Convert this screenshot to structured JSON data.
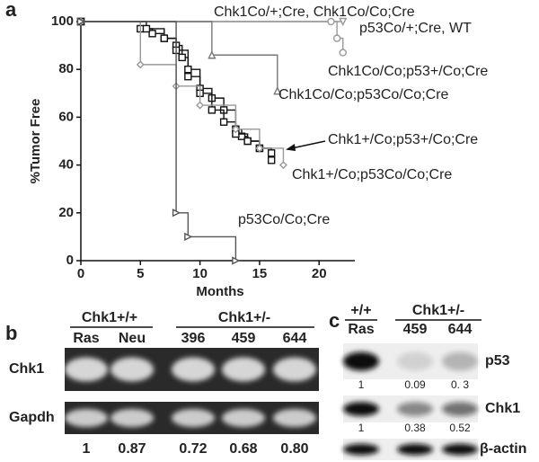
{
  "chart_data": {
    "type": "step",
    "label": "a",
    "xlabel": "Months",
    "ylabel": "%Tumor Free",
    "xlim": [
      0,
      23
    ],
    "ylim": [
      0,
      100
    ],
    "xticks": [
      0,
      5,
      10,
      15,
      20
    ],
    "yticks": [
      0,
      20,
      40,
      60,
      80,
      100
    ],
    "series": [
      {
        "name": "Chk1Co/+;Cre, Chk1Co/Co;Cre",
        "color": "#999999",
        "marker": "triangle-down",
        "x": [
          0,
          22
        ],
        "values": [
          100,
          100
        ]
      },
      {
        "name": "p53Co/+;Cre, WT",
        "color": "#999999",
        "marker": "circle",
        "x": [
          0,
          21,
          21.5,
          22
        ],
        "values": [
          100,
          100,
          93,
          87
        ]
      },
      {
        "name": "Chk1Co/Co;p53+/Co;Cre",
        "color": "#777777",
        "marker": "triangle",
        "x": [
          0,
          11,
          16.5
        ],
        "values": [
          100,
          86,
          71
        ]
      },
      {
        "name": "Chk1Co/Co;p53Co/Co;Cre",
        "color": "#111111",
        "marker": "square",
        "x": [
          0,
          5,
          6,
          7,
          8,
          8.5,
          9,
          10,
          11,
          12,
          13,
          13.5,
          14,
          15,
          16
        ],
        "values": [
          100,
          97,
          95,
          93,
          90,
          85,
          77,
          72,
          68,
          63,
          55,
          52,
          50,
          47,
          42
        ]
      },
      {
        "name": "Chk1+/Co;p53+/Co;Cre",
        "color": "#111111",
        "marker": "square",
        "x": [
          0,
          5.5,
          7,
          8,
          9,
          10,
          11,
          12,
          13,
          14,
          15,
          16
        ],
        "values": [
          100,
          97,
          93,
          88,
          80,
          70,
          63,
          58,
          53,
          50,
          47,
          45
        ]
      },
      {
        "name": "Chk1+/Co;p53Co/Co;Cre",
        "color": "#999999",
        "marker": "diamond",
        "x": [
          0,
          5,
          8,
          10,
          13,
          15,
          17
        ],
        "values": [
          100,
          82,
          73,
          65,
          55,
          47,
          40
        ]
      },
      {
        "name": "p53Co/Co;Cre",
        "color": "#555555",
        "marker": "triangle-right",
        "x": [
          0,
          8,
          9,
          13
        ],
        "values": [
          100,
          20,
          10,
          0
        ]
      }
    ]
  },
  "panel_b": {
    "label": "b",
    "groups": [
      "Chk1+/+",
      "Chk1+/-"
    ],
    "lanes": [
      "Ras",
      "Neu",
      "396",
      "459",
      "644"
    ],
    "rows": [
      "Chk1",
      "Gapdh"
    ],
    "ratios": [
      "1",
      "0.87",
      "0.72",
      "0.68",
      "0.80"
    ]
  },
  "panel_c": {
    "label": "c",
    "groups": [
      "+/+",
      "Chk1+/-"
    ],
    "lanes": [
      "Ras",
      "459",
      "644"
    ],
    "rows": [
      {
        "name": "p53",
        "ratios": [
          "1",
          "0.09",
          "0. 3"
        ]
      },
      {
        "name": "Chk1",
        "ratios": [
          "1",
          "0.38",
          "0.52"
        ]
      },
      {
        "name": "β-actin"
      }
    ]
  }
}
